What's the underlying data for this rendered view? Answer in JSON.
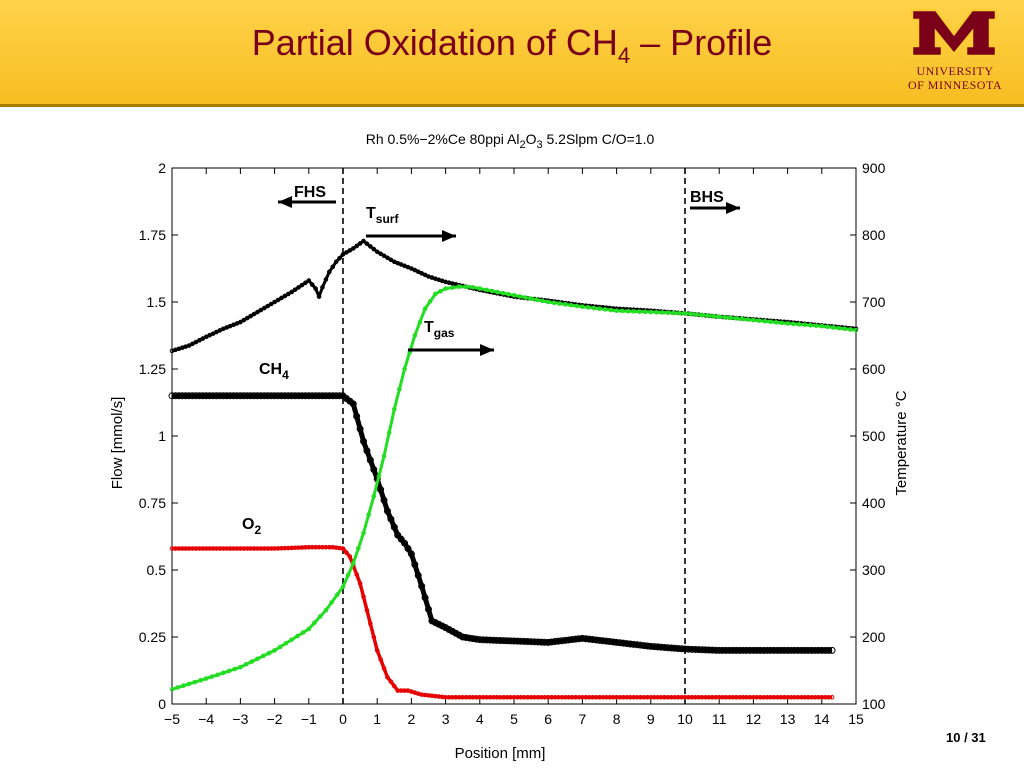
{
  "slide": {
    "title_prefix": "Partial Oxidation of CH",
    "title_sub": "4",
    "title_suffix": " – Profile",
    "logo": {
      "letter": "M",
      "line1": "UNIVERSITY",
      "line2": "OF MINNESOTA"
    },
    "page": "10 / 31",
    "colors": {
      "header": "#f9c22e",
      "maroon": "#7a0019",
      "gold": "#ffcc33"
    }
  },
  "chart_data": {
    "type": "line",
    "title": "Rh 0.5%−2%Ce 80ppi Al2O3 5.2Slpm C/O=1.0",
    "title_parts": [
      "Rh 0.5%−2%Ce 80ppi Al",
      "2",
      "O",
      "3",
      " 5.2Slpm C/O=1.0"
    ],
    "xlabel": "Position [mm]",
    "ylabel": "Flow [mmol/s]",
    "y2label": "Temperature °C",
    "xlim": [
      -5,
      15
    ],
    "ylim": [
      0,
      2
    ],
    "y2lim": [
      100,
      900
    ],
    "xticks": [
      "−5",
      "−4",
      "−3",
      "−2",
      "−1",
      "0",
      "1",
      "2",
      "3",
      "4",
      "5",
      "6",
      "7",
      "8",
      "9",
      "10",
      "11",
      "12",
      "13",
      "14",
      "15"
    ],
    "yticks": [
      "0",
      "0.25",
      "0.5",
      "0.75",
      "1",
      "1.25",
      "1.5",
      "1.75",
      "2"
    ],
    "y2ticks": [
      "100",
      "200",
      "300",
      "400",
      "500",
      "600",
      "700",
      "800",
      "900"
    ],
    "vlines": [
      0,
      10
    ],
    "annotations": {
      "fhs": "FHS",
      "bhs": "BHS",
      "tsurf_main": "T",
      "tsurf_sub": "surf",
      "tgas_main": "T",
      "tgas_sub": "gas",
      "ch4_main": "CH",
      "ch4_sub": "4",
      "o2_main": "O",
      "o2_sub": "2"
    },
    "series": [
      {
        "name": "CH4",
        "axis": "left",
        "color": "#000000",
        "x": [
          -5,
          -4,
          -3,
          -2,
          -1,
          -0.3,
          0,
          0.3,
          0.6,
          1.0,
          1.3,
          1.6,
          1.8,
          2.0,
          2.3,
          2.6,
          3.0,
          3.5,
          4,
          5,
          6,
          7,
          8,
          9,
          10,
          11,
          12,
          13,
          14.3
        ],
        "y": [
          1.15,
          1.15,
          1.15,
          1.15,
          1.15,
          1.15,
          1.15,
          1.12,
          0.98,
          0.84,
          0.72,
          0.63,
          0.6,
          0.56,
          0.44,
          0.31,
          0.285,
          0.25,
          0.24,
          0.235,
          0.23,
          0.245,
          0.23,
          0.215,
          0.205,
          0.2,
          0.2,
          0.2,
          0.2
        ]
      },
      {
        "name": "O2",
        "axis": "left",
        "color": "#e60000",
        "x": [
          -5,
          -4,
          -3,
          -2,
          -1,
          -0.3,
          0,
          0.2,
          0.5,
          0.8,
          1.0,
          1.3,
          1.6,
          1.9,
          2.3,
          3,
          4,
          6,
          8,
          10,
          12,
          14.3
        ],
        "y": [
          0.58,
          0.58,
          0.58,
          0.58,
          0.585,
          0.585,
          0.58,
          0.55,
          0.45,
          0.3,
          0.2,
          0.1,
          0.05,
          0.05,
          0.035,
          0.025,
          0.025,
          0.025,
          0.025,
          0.025,
          0.025,
          0.025
        ]
      },
      {
        "name": "T surf",
        "axis": "right",
        "color": "#000000",
        "x": [
          -5,
          -4.5,
          -4,
          -3.5,
          -3,
          -2.5,
          -2,
          -1.5,
          -1,
          -0.8,
          -0.7,
          -0.6,
          -0.4,
          -0.2,
          0,
          0.3,
          0.6,
          1.0,
          1.5,
          2,
          2.5,
          3,
          3.5,
          4,
          5,
          6,
          7,
          8,
          9,
          10,
          11,
          12,
          13,
          14,
          15
        ],
        "y": [
          627,
          635,
          648,
          660,
          670,
          685,
          700,
          715,
          732,
          720,
          708,
          722,
          745,
          760,
          771,
          780,
          791,
          775,
          760,
          750,
          738,
          730,
          724,
          718,
          708,
          702,
          695,
          690,
          687,
          683,
          678,
          674,
          670,
          665,
          660
        ]
      },
      {
        "name": "T gas",
        "axis": "right",
        "color": "#22dd22",
        "x": [
          -5,
          -4,
          -3,
          -2,
          -1,
          -0.5,
          0,
          0.3,
          0.6,
          0.9,
          1.2,
          1.5,
          1.8,
          2.1,
          2.4,
          2.7,
          3.0,
          3.4,
          3.8,
          4.2,
          5,
          6,
          7,
          8,
          9,
          10,
          11,
          12,
          13,
          14,
          15
        ],
        "y": [
          122,
          138,
          155,
          180,
          212,
          240,
          275,
          310,
          355,
          410,
          470,
          540,
          600,
          650,
          690,
          712,
          720,
          723,
          722,
          718,
          710,
          700,
          693,
          687,
          685,
          683,
          678,
          673,
          668,
          664,
          658
        ]
      }
    ]
  }
}
